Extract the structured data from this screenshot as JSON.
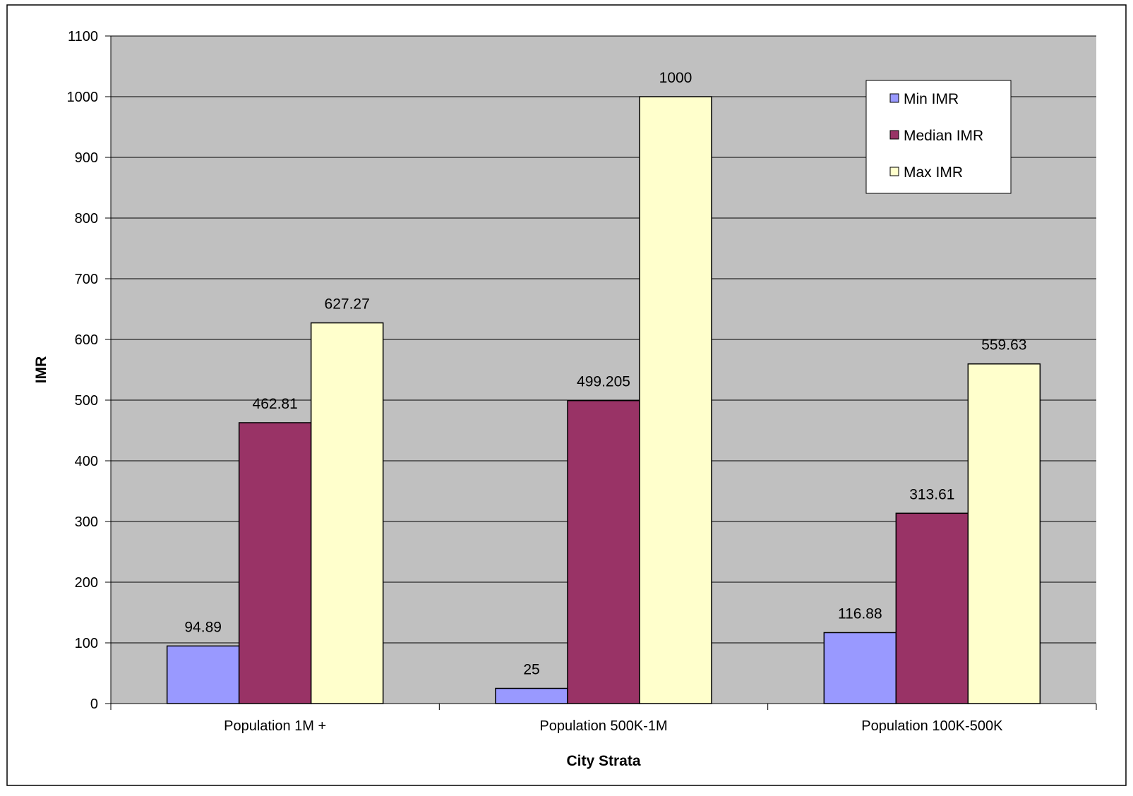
{
  "chart_data": {
    "type": "bar",
    "title": "",
    "xlabel": "City Strata",
    "ylabel": "IMR",
    "ylim": [
      0,
      1100
    ],
    "ytick_step": 100,
    "grid": true,
    "legend_position": "top-right",
    "categories": [
      "Population 1M +",
      "Population 500K-1M",
      "Population 100K-500K"
    ],
    "series": [
      {
        "name": "Min IMR",
        "values": [
          94.89,
          25,
          116.88
        ],
        "labels": [
          "94.89",
          "25",
          "116.88"
        ],
        "color": "#9999ff"
      },
      {
        "name": "Median IMR",
        "values": [
          462.81,
          499.205,
          313.61
        ],
        "labels": [
          "462.81",
          "499.205",
          "313.61"
        ],
        "color": "#993366"
      },
      {
        "name": "Max IMR",
        "values": [
          627.27,
          1000,
          559.63
        ],
        "labels": [
          "627.27",
          "1000",
          "559.63"
        ],
        "color": "#ffffcc"
      }
    ],
    "colors": {
      "plot_background": "#c0c0c0",
      "gridline": "#000000",
      "bar_outline": "#000000",
      "frame": "#000000"
    }
  }
}
